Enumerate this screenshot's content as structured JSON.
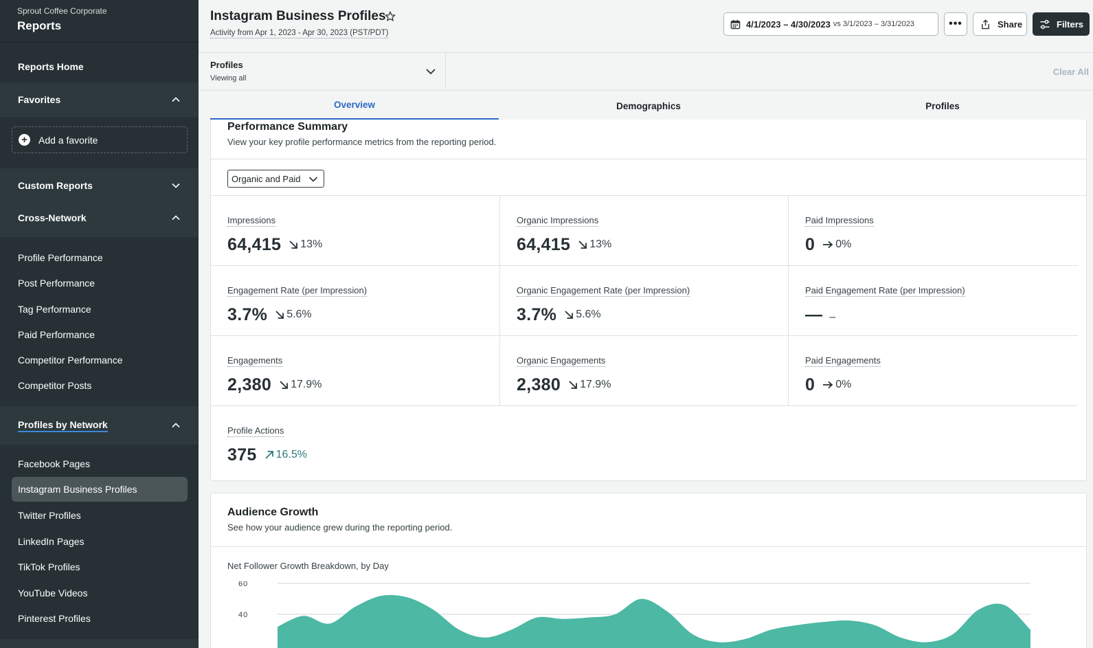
{
  "sidebar": {
    "org": "Sprout Coffee Corporate",
    "title": "Reports",
    "reports_home": "Reports Home",
    "favorites": "Favorites",
    "add_favorite": "Add a favorite",
    "custom_reports": "Custom Reports",
    "cross_network": "Cross-Network",
    "cross_network_items": [
      "Profile Performance",
      "Post Performance",
      "Tag Performance",
      "Paid Performance",
      "Competitor Performance",
      "Competitor Posts"
    ],
    "profiles_by_network": "Profiles by Network",
    "network_items": [
      "Facebook Pages",
      "Instagram Business Profiles",
      "Twitter Profiles",
      "LinkedIn Pages",
      "TikTok Profiles",
      "YouTube Videos",
      "Pinterest Profiles"
    ],
    "active_item": "Instagram Business Profiles"
  },
  "header": {
    "title": "Instagram Business Profiles",
    "subtitle": "Activity from Apr 1, 2023 - Apr 30, 2023 (PST/PDT)",
    "date_range": "4/1/2023 – 4/30/2023",
    "compare": "vs 3/1/2023 – 3/31/2023",
    "more": "•••",
    "share": "Share",
    "filters": "Filters"
  },
  "filter_bar": {
    "profiles_label": "Profiles",
    "profiles_value": "Viewing all",
    "clear_all": "Clear All"
  },
  "tabs": [
    "Overview",
    "Demographics",
    "Profiles"
  ],
  "performance": {
    "title": "Performance Summary",
    "description": "View your key profile performance metrics from the reporting period.",
    "select_value": "Organic and Paid",
    "metrics": [
      {
        "label": "Impressions",
        "value": "64,415",
        "change": "13%",
        "dir": "down"
      },
      {
        "label": "Organic Impressions",
        "value": "64,415",
        "change": "13%",
        "dir": "down"
      },
      {
        "label": "Paid Impressions",
        "value": "0",
        "change": "0%",
        "dir": "flat"
      },
      {
        "label": "Engagement Rate (per Impression)",
        "value": "3.7%",
        "change": "5.6%",
        "dir": "down"
      },
      {
        "label": "Organic Engagement Rate (per Impression)",
        "value": "3.7%",
        "change": "5.6%",
        "dir": "down"
      },
      {
        "label": "Paid Engagement Rate (per Impression)",
        "value": "—",
        "change": "–",
        "dir": "none"
      },
      {
        "label": "Engagements",
        "value": "2,380",
        "change": "17.9%",
        "dir": "down"
      },
      {
        "label": "Organic Engagements",
        "value": "2,380",
        "change": "17.9%",
        "dir": "down"
      },
      {
        "label": "Paid Engagements",
        "value": "0",
        "change": "0%",
        "dir": "flat"
      },
      {
        "label": "Profile Actions",
        "value": "375",
        "change": "16.5%",
        "dir": "up"
      }
    ]
  },
  "audience": {
    "title": "Audience Growth",
    "description": "See how your audience grew during the reporting period.",
    "chart_title": "Net Follower Growth Breakdown, by Day"
  },
  "colors": {
    "sidebar_bg": "#273135",
    "accent": "#2c69c7",
    "chart_fill": "#4db8a4",
    "positive": "#2e7a7c"
  },
  "chart_data": {
    "type": "area",
    "title": "Net Follower Growth Breakdown, by Day",
    "ytick_labels": [
      "60",
      "40"
    ],
    "ylim": [
      0,
      60
    ],
    "x": [
      1,
      2,
      3,
      4,
      5,
      6,
      7,
      8,
      9,
      10,
      11,
      12,
      13,
      14,
      15,
      16,
      17,
      18,
      19,
      20,
      21,
      22,
      23,
      24,
      25,
      26,
      27,
      28,
      29,
      30
    ],
    "values": [
      32,
      39,
      34,
      45,
      52,
      51,
      43,
      30,
      25,
      30,
      38,
      37,
      38,
      40,
      50,
      42,
      27,
      22,
      24,
      30,
      33,
      35,
      36,
      33,
      25,
      22,
      27,
      43,
      46,
      30
    ]
  }
}
